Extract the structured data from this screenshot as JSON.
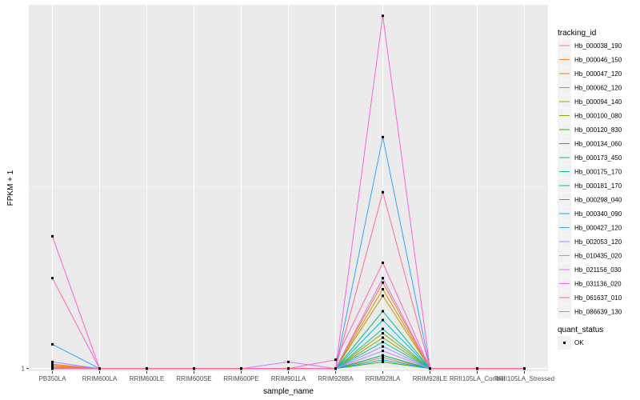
{
  "chart_data": {
    "type": "line",
    "xlabel": "sample_name",
    "ylabel": "FPKM + 1",
    "categories": [
      "PB350LA",
      "RRIM600LA",
      "RRIM600LE",
      "RRIM600SE",
      "RRIM600PE",
      "RRIM901LA",
      "RRIM928BA",
      "RRIM928LA",
      "RRIM928LE",
      "RRII105LA_Control",
      "RRII105LA_Stressed"
    ],
    "y_ticks": [
      {
        "value": 1,
        "label": "1"
      }
    ],
    "y_range": [
      0.88,
      17.5
    ],
    "grid": true,
    "legend_position": "right",
    "legend_title": "tracking_id",
    "series": [
      {
        "name": "Hb_000038_190",
        "color": "#F8766D",
        "values": [
          1.15,
          1,
          1,
          1,
          1,
          1,
          1,
          1.5,
          1,
          1,
          1
        ]
      },
      {
        "name": "Hb_000046_150",
        "color": "#EA8331",
        "values": [
          1.2,
          1,
          1,
          1,
          1,
          1,
          1,
          4.9,
          1,
          1,
          1
        ]
      },
      {
        "name": "Hb_000047_120",
        "color": "#D89000",
        "values": [
          1.1,
          1,
          1,
          1,
          1,
          1,
          1,
          4.6,
          1,
          1,
          1
        ]
      },
      {
        "name": "Hb_000062_120",
        "color": "#C09B00",
        "values": [
          1.05,
          1,
          1,
          1,
          1,
          1,
          1,
          4.3,
          1,
          1,
          1
        ]
      },
      {
        "name": "Hb_000094_140",
        "color": "#A3A500",
        "values": [
          1.0,
          1,
          1,
          1,
          1,
          1,
          1,
          2.6,
          1,
          1,
          1
        ]
      },
      {
        "name": "Hb_000100_080",
        "color": "#7CAE00",
        "values": [
          1.0,
          1,
          1,
          1,
          1,
          1,
          1,
          2.4,
          1,
          1,
          1
        ]
      },
      {
        "name": "Hb_000120_830",
        "color": "#39B600",
        "values": [
          1.0,
          1,
          1,
          1,
          1,
          1,
          1,
          1.3,
          1,
          1,
          1
        ]
      },
      {
        "name": "Hb_000134_060",
        "color": "#00BB4E",
        "values": [
          1.0,
          1,
          1,
          1,
          1,
          1,
          1,
          1.6,
          1,
          1,
          1
        ]
      },
      {
        "name": "Hb_000173_450",
        "color": "#00BF7D",
        "values": [
          1.0,
          1,
          1,
          1,
          1,
          1,
          1,
          3.6,
          1,
          1,
          1
        ]
      },
      {
        "name": "Hb_000175_170",
        "color": "#00C1A3",
        "values": [
          1.0,
          1,
          1,
          1,
          1,
          1,
          1,
          2.8,
          1,
          1,
          1
        ]
      },
      {
        "name": "Hb_000181_170",
        "color": "#00BFC4",
        "values": [
          1.0,
          1,
          1,
          1,
          1,
          1,
          1,
          2.2,
          1,
          1,
          1
        ]
      },
      {
        "name": "Hb_000298_040",
        "color": "#00BAE0",
        "values": [
          1.0,
          1,
          1,
          1,
          1,
          1,
          1,
          3.2,
          1,
          1,
          1
        ]
      },
      {
        "name": "Hb_000340_090",
        "color": "#00B0F6",
        "values": [
          1.0,
          1,
          1,
          1,
          1,
          1,
          1,
          1.4,
          1,
          1,
          1
        ]
      },
      {
        "name": "Hb_000427_120",
        "color": "#35A2FF",
        "values": [
          2.1,
          1,
          1,
          1,
          1,
          1,
          1,
          11.5,
          1,
          1,
          1
        ]
      },
      {
        "name": "Hb_002053_120",
        "color": "#9590FF",
        "values": [
          1.3,
          1,
          1,
          1,
          1,
          1,
          1,
          2.0,
          1,
          1,
          1
        ]
      },
      {
        "name": "Hb_010435_020",
        "color": "#C77CFF",
        "values": [
          1.0,
          1,
          1,
          1,
          1,
          1.3,
          1,
          1.8,
          1,
          1,
          1
        ]
      },
      {
        "name": "Hb_021156_030",
        "color": "#E76BF3",
        "values": [
          1.0,
          1,
          1,
          1,
          1,
          1,
          1,
          5.1,
          1,
          1,
          1
        ]
      },
      {
        "name": "Hb_031136_020",
        "color": "#FA62DB",
        "values": [
          7.0,
          1,
          1,
          1,
          1,
          1,
          1,
          17.0,
          1,
          1,
          1
        ]
      },
      {
        "name": "Hb_061637_010",
        "color": "#FF62BC",
        "values": [
          5.1,
          1,
          1,
          1,
          1,
          1,
          1.4,
          5.8,
          1,
          1,
          1
        ]
      },
      {
        "name": "Hb_086639_130",
        "color": "#FF6C91",
        "values": [
          1.0,
          1,
          1,
          1,
          1,
          1,
          1,
          9.0,
          1,
          1,
          1
        ]
      }
    ],
    "point_legend": {
      "title": "quant_status",
      "label": "OK",
      "color": "#000000"
    }
  }
}
